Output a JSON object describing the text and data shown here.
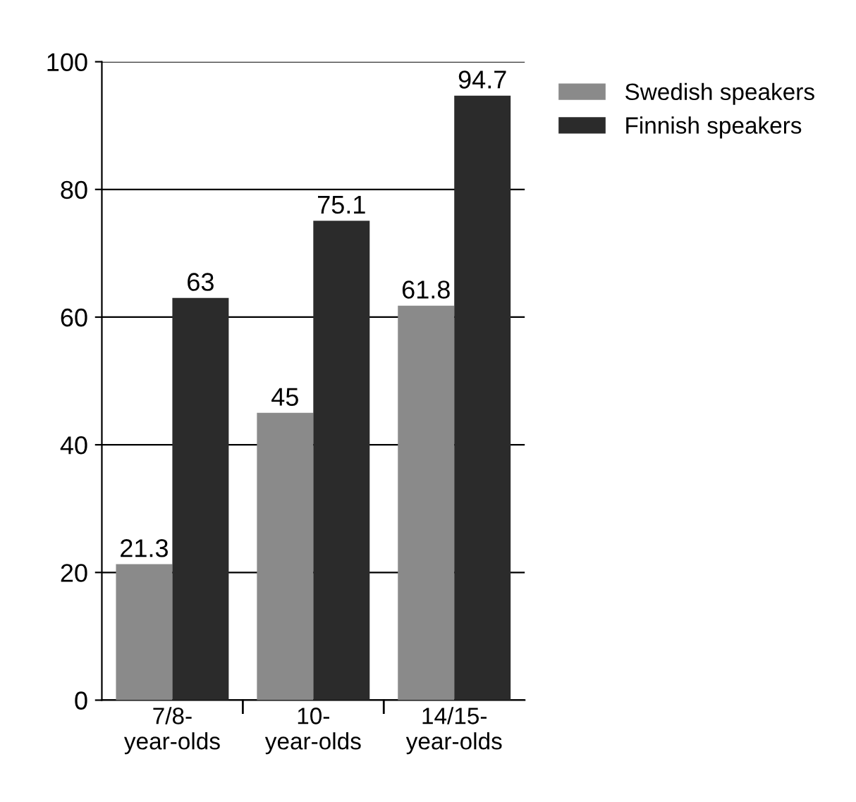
{
  "chart_data": {
    "type": "bar",
    "categories": [
      "7/8-\nyear-olds",
      "10-\nyear-olds",
      "14/15-\nyear-olds"
    ],
    "series": [
      {
        "name": "Swedish speakers",
        "color": "#8a8a8a",
        "values": [
          21.3,
          45,
          61.8
        ]
      },
      {
        "name": "Finnish speakers",
        "color": "#2b2b2b",
        "values": [
          63,
          75.1,
          94.7
        ]
      }
    ],
    "ylim": [
      0,
      100
    ],
    "yticks": [
      0,
      20,
      40,
      60,
      80,
      100
    ],
    "grid": "y",
    "legend": "top right",
    "data_labels": true
  }
}
